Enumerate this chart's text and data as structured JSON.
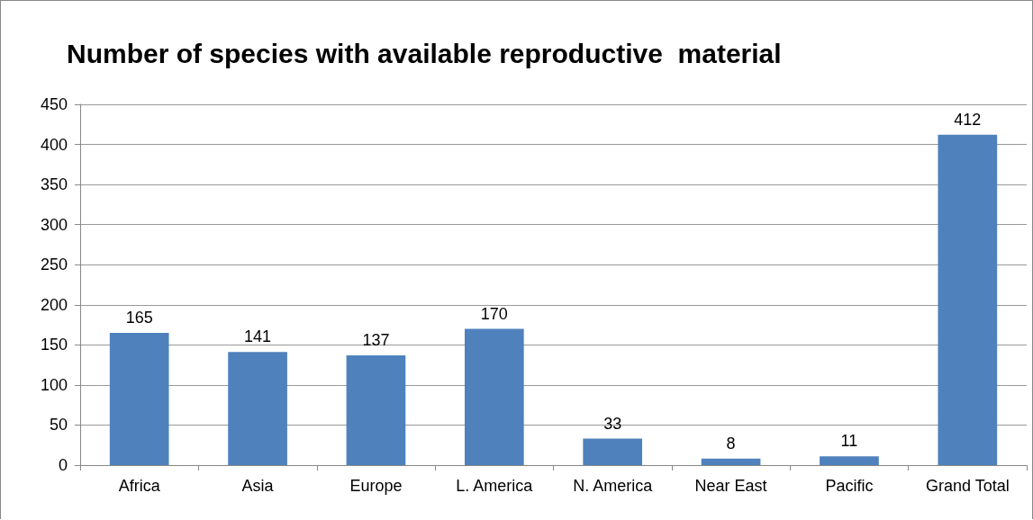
{
  "chart_data": {
    "type": "bar",
    "title": "Number of species with available reproductive  material",
    "categories": [
      "Africa",
      "Asia",
      "Europe",
      "L. America",
      "N. America",
      "Near East",
      "Pacific",
      "Grand Total"
    ],
    "values": [
      165,
      141,
      137,
      170,
      33,
      8,
      11,
      412
    ],
    "color": "#4f81bd",
    "ylim": [
      0,
      450
    ],
    "yticks": [
      0,
      50,
      100,
      150,
      200,
      250,
      300,
      350,
      400,
      450
    ],
    "grid": "y",
    "data_labels": true
  }
}
